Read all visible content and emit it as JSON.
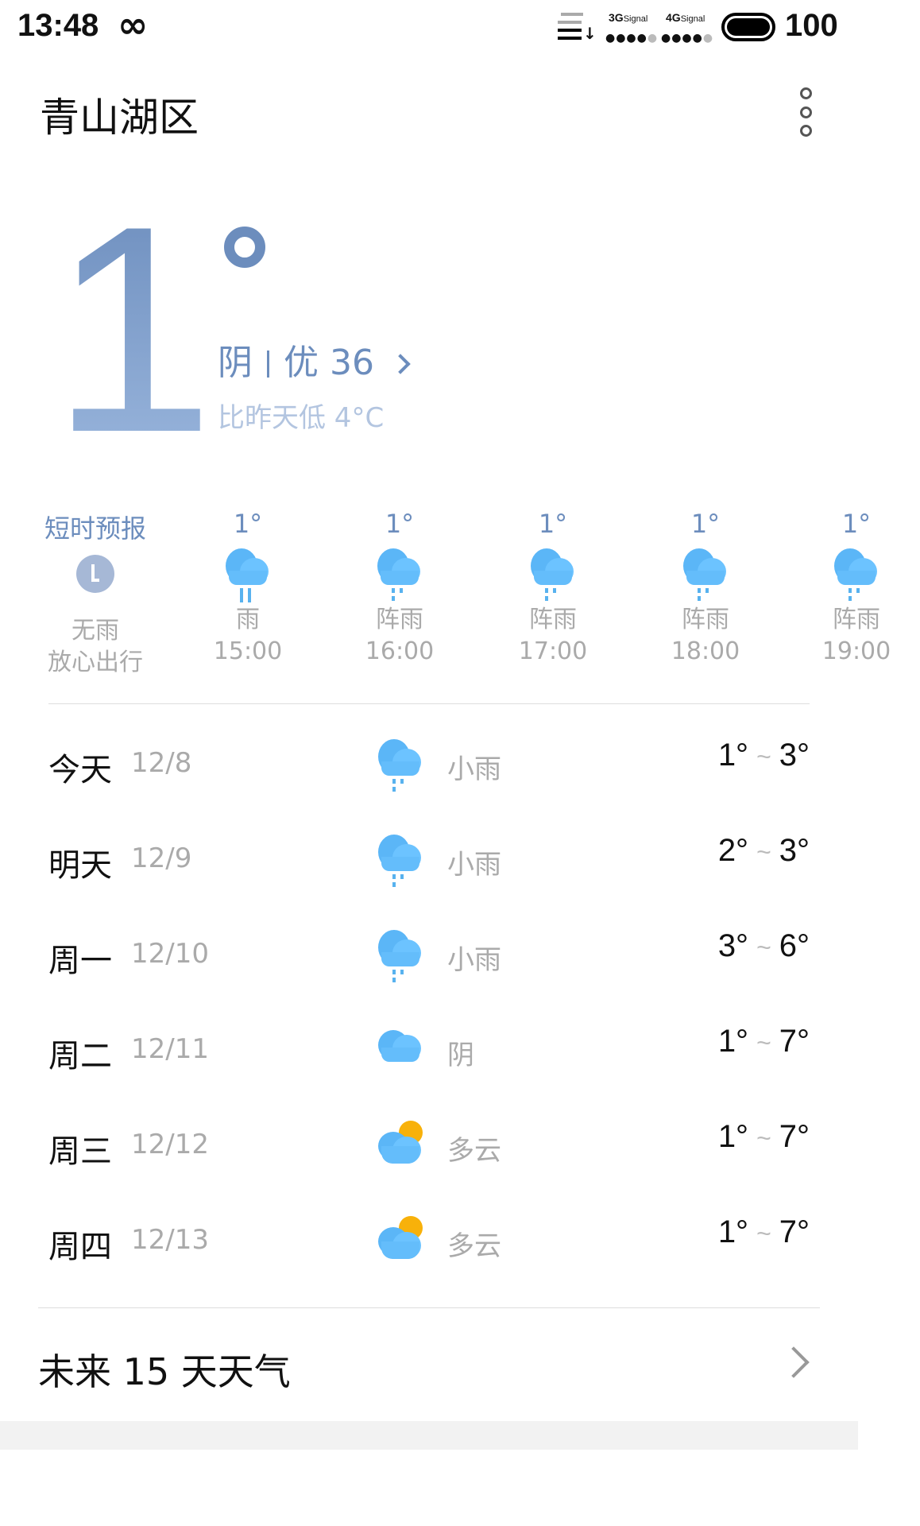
{
  "status_bar": {
    "time": "13:48",
    "infinity_icon": "infinity-icon",
    "sig1": "3G",
    "sig2": "4G",
    "sig_suffix": "Signal",
    "battery": "100"
  },
  "header": {
    "title": "青山湖区",
    "menu_icon": "more-vertical-icon"
  },
  "current": {
    "temp": "1",
    "condition": "阴",
    "aqi": "优 36",
    "compare": "比昨天低 4°C"
  },
  "hourly": {
    "label": "短时预报",
    "summary1": "无雨",
    "summary2": "放心出行",
    "items": [
      {
        "temp": "1°",
        "cond": "雨",
        "time": "15:00",
        "icon": "rain-icon"
      },
      {
        "temp": "1°",
        "cond": "阵雨",
        "time": "16:00",
        "icon": "shower-icon"
      },
      {
        "temp": "1°",
        "cond": "阵雨",
        "time": "17:00",
        "icon": "shower-icon"
      },
      {
        "temp": "1°",
        "cond": "阵雨",
        "time": "18:00",
        "icon": "shower-icon"
      },
      {
        "temp": "1°",
        "cond": "阵雨",
        "time": "19:00",
        "icon": "shower-icon"
      }
    ]
  },
  "daily": [
    {
      "day": "今天",
      "date": "12/8",
      "cond": "小雨",
      "low": "1°",
      "high": "3°",
      "icon": "rain"
    },
    {
      "day": "明天",
      "date": "12/9",
      "cond": "小雨",
      "low": "2°",
      "high": "3°",
      "icon": "rain"
    },
    {
      "day": "周一",
      "date": "12/10",
      "cond": "小雨",
      "low": "3°",
      "high": "6°",
      "icon": "rain"
    },
    {
      "day": "周二",
      "date": "12/11",
      "cond": "阴",
      "low": "1°",
      "high": "7°",
      "icon": "overcast"
    },
    {
      "day": "周三",
      "date": "12/12",
      "cond": "多云",
      "low": "1°",
      "high": "7°",
      "icon": "partly-cloudy"
    },
    {
      "day": "周四",
      "date": "12/13",
      "cond": "多云",
      "low": "1°",
      "high": "7°",
      "icon": "partly-cloudy"
    }
  ],
  "tilde": "~",
  "more": {
    "label": "未来 15 天天气"
  },
  "colors": {
    "accent": "#6c8dbd",
    "icon_blue": "#5bb6f7",
    "sun": "#f8b10a"
  }
}
